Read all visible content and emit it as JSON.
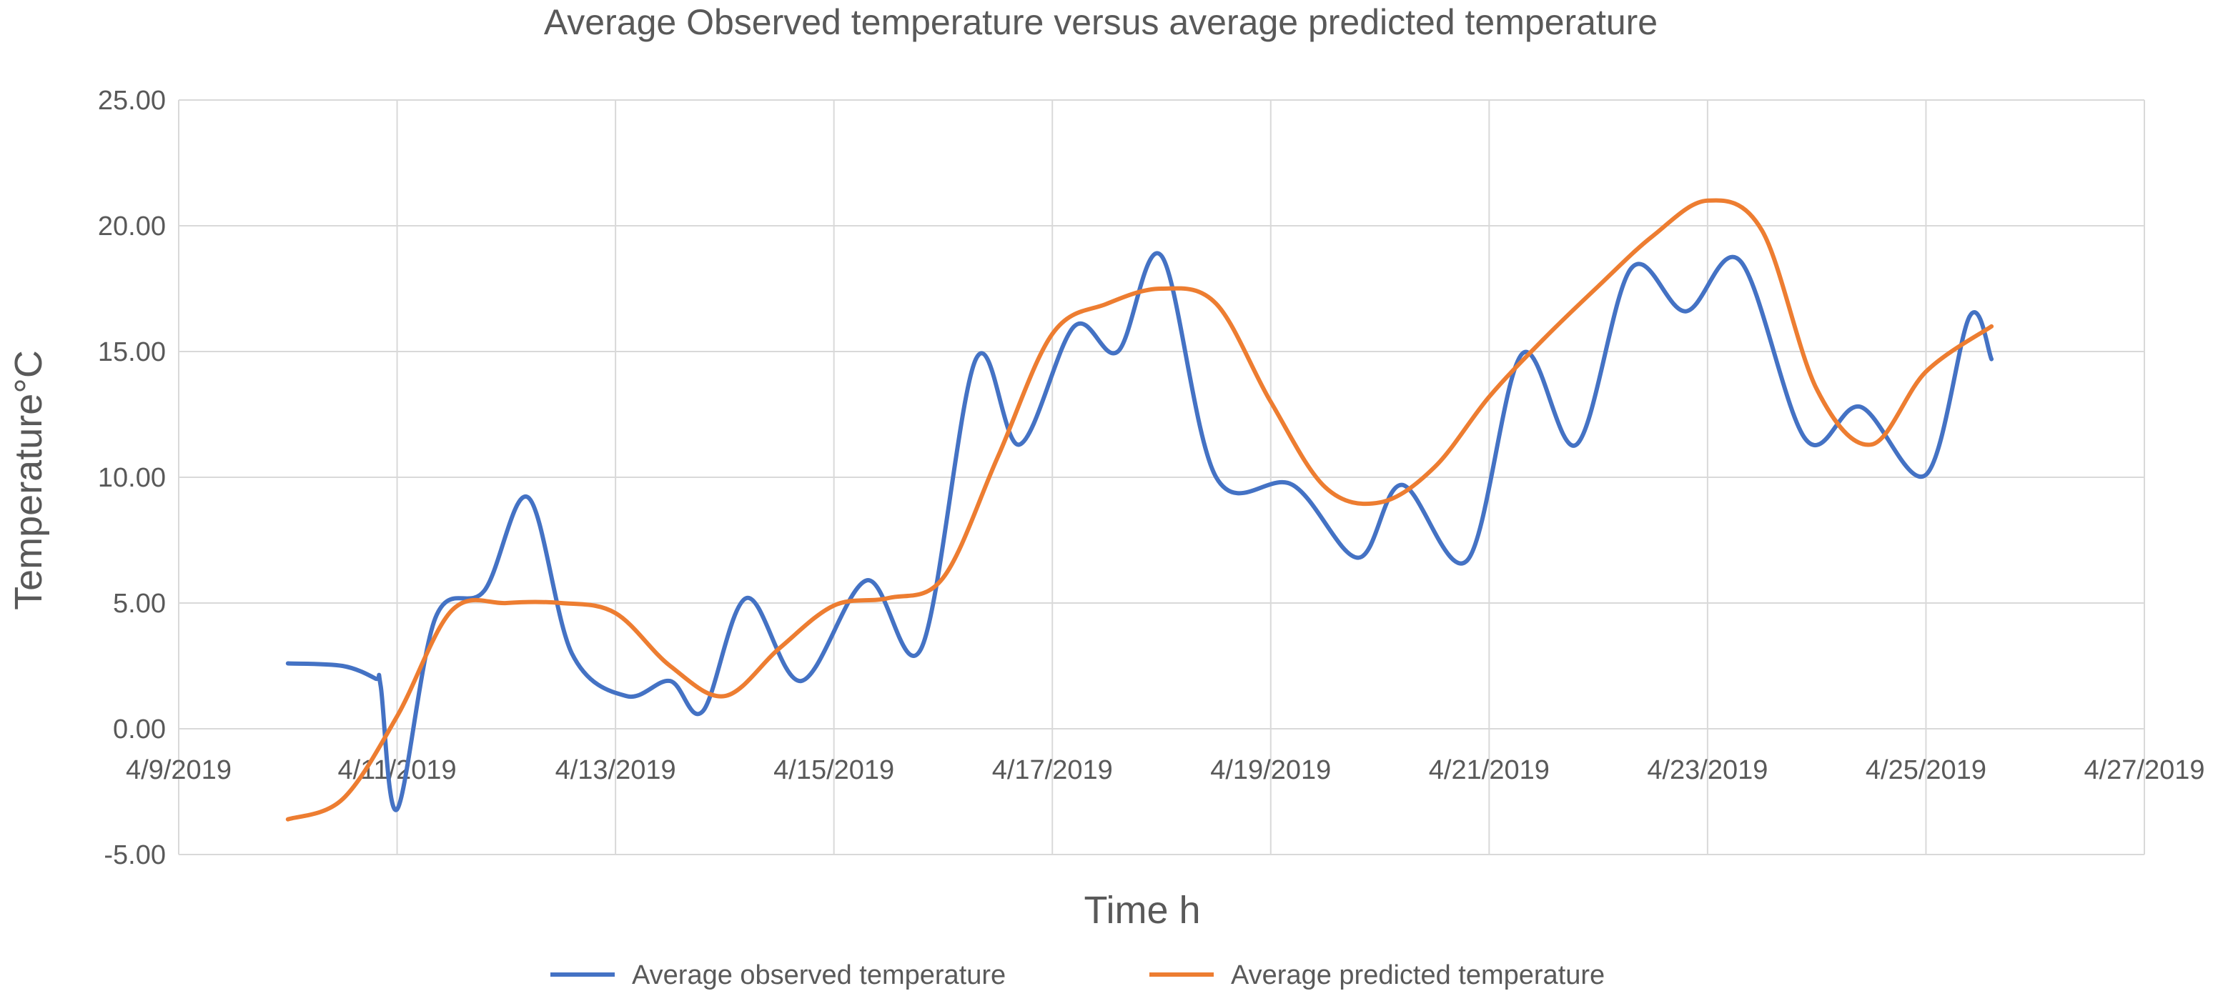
{
  "chart_data": {
    "type": "line",
    "title": "Average Observed temperature versus average predicted temperature",
    "xlabel": "Time h",
    "ylabel": "Temperature°C",
    "ylim": [
      -5,
      25
    ],
    "yticks": [
      -5,
      0,
      5,
      10,
      15,
      20,
      25
    ],
    "ytick_labels": [
      "-5.00",
      "0.00",
      "5.00",
      "10.00",
      "15.00",
      "20.00",
      "25.00"
    ],
    "xlim": [
      0,
      18
    ],
    "xticks": [
      0,
      2,
      4,
      6,
      8,
      10,
      12,
      14,
      16,
      18
    ],
    "xtick_labels": [
      "4/9/2019",
      "4/11/2019",
      "4/13/2019",
      "4/15/2019",
      "4/17/2019",
      "4/19/2019",
      "4/21/2019",
      "4/23/2019",
      "4/25/2019",
      "4/27/2019"
    ],
    "x_unit": "days since 4/9/2019",
    "grid": true,
    "legend_position": "bottom",
    "series": [
      {
        "name": "Average observed temperature",
        "color": "#4472C4",
        "x": [
          1.0,
          1.5,
          1.8,
          1.85,
          2.0,
          2.35,
          2.8,
          3.2,
          3.6,
          4.1,
          4.5,
          4.8,
          5.2,
          5.7,
          6.3,
          6.8,
          7.3,
          7.7,
          8.2,
          8.6,
          9.0,
          9.5,
          10.2,
          10.8,
          11.2,
          11.8,
          12.3,
          12.8,
          13.3,
          13.8,
          14.3,
          14.9,
          15.4,
          16.0,
          16.4,
          16.6
        ],
        "values": [
          2.6,
          2.5,
          2.0,
          1.7,
          -3.2,
          4.4,
          5.5,
          9.2,
          3.0,
          1.3,
          1.9,
          0.7,
          5.2,
          1.9,
          5.9,
          3.2,
          14.7,
          11.3,
          16.0,
          15.0,
          18.8,
          10.0,
          9.7,
          6.8,
          9.7,
          6.7,
          14.9,
          11.3,
          18.3,
          16.6,
          18.6,
          11.5,
          12.8,
          10.1,
          16.4,
          14.7
        ]
      },
      {
        "name": "Average predicted temperature",
        "color": "#ED7D31",
        "x": [
          1.0,
          1.5,
          2.0,
          2.5,
          3.0,
          3.5,
          4.0,
          4.5,
          5.0,
          5.5,
          6.0,
          6.5,
          7.0,
          7.5,
          8.0,
          8.5,
          9.0,
          9.5,
          10.0,
          10.5,
          11.0,
          11.5,
          12.0,
          12.5,
          13.0,
          13.5,
          14.0,
          14.5,
          15.0,
          15.5,
          16.0,
          16.6
        ],
        "values": [
          -3.6,
          -2.8,
          0.5,
          4.7,
          5.0,
          5.0,
          4.6,
          2.5,
          1.3,
          3.2,
          4.9,
          5.2,
          6.0,
          10.8,
          15.7,
          16.9,
          17.5,
          16.9,
          13.0,
          9.6,
          9.0,
          10.4,
          13.2,
          15.5,
          17.6,
          19.6,
          21.0,
          19.8,
          13.5,
          11.3,
          14.2,
          16.0
        ]
      }
    ]
  }
}
